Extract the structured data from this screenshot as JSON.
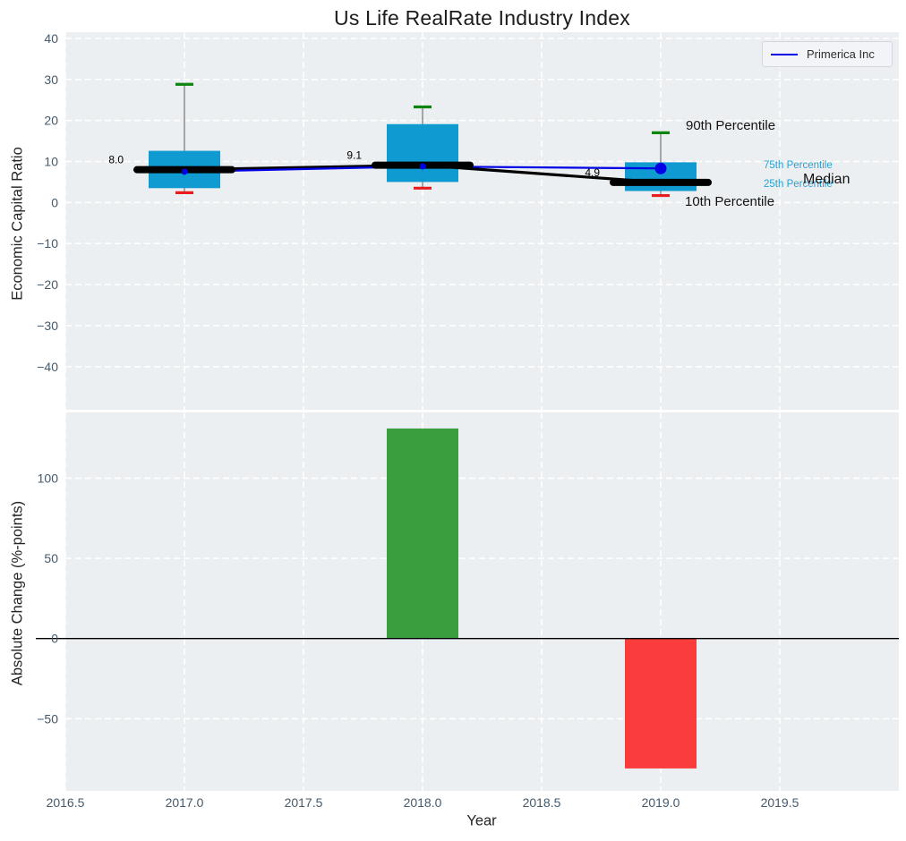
{
  "chart_data": [
    {
      "type": "box",
      "title": "Us Life RealRate Industry Index",
      "ylabel": "Economic Capital Ratio",
      "xlim": [
        2016.5,
        2020.0
      ],
      "ylim": [
        -50.5,
        41.5
      ],
      "xticks": [
        2016.5,
        2017,
        2017.5,
        2018,
        2018.5,
        2019,
        2019.5
      ],
      "yticks": [
        40,
        30,
        20,
        10,
        0,
        -10,
        -20,
        -30,
        -40
      ],
      "ytick_labels": [
        "40",
        "30",
        "20",
        "10",
        "0",
        "−10",
        "−20",
        "−30",
        "−40"
      ],
      "grid": true,
      "legend": {
        "label": "Primerica Inc",
        "position": "upper right",
        "line_color": "#0000E6"
      },
      "boxes": [
        {
          "x": 2017,
          "p10": 2.4,
          "p25": 3.5,
          "median": 8.0,
          "p75": 12.6,
          "p90": 28.8,
          "label": "8.0"
        },
        {
          "x": 2018,
          "p10": 3.5,
          "p25": 5.0,
          "median": 9.1,
          "p75": 19.1,
          "p90": 23.3,
          "label": "9.1"
        },
        {
          "x": 2019,
          "p10": 1.7,
          "p25": 2.8,
          "median": 4.9,
          "p75": 9.8,
          "p90": 17.0,
          "label": "4.9"
        }
      ],
      "median_series": {
        "name": "Median",
        "x": [
          2017,
          2018,
          2019
        ],
        "y": [
          8.0,
          9.1,
          4.9
        ],
        "color": "#000000"
      },
      "primerica_series": {
        "name": "Primerica Inc",
        "x": [
          2017,
          2018,
          2019
        ],
        "y": [
          7.5,
          8.8,
          8.3
        ],
        "color": "#0000E6"
      },
      "percentile_labels": {
        "p90": "90th Percentile",
        "p75": "75th Percentile",
        "p25": "25th Percentile",
        "median": "Median",
        "p10": "10th Percentile"
      },
      "colors": {
        "box": "#0F9BD1",
        "cap_top": "#0E8410",
        "cap_bottom": "#E81E1E",
        "whisker": "#7A7A7A",
        "median": "#000000",
        "cyan_label": "#2AA0D2",
        "plot_bg": "#ECEFF1",
        "grid": "#FFFFFF",
        "tick": "#455A6B"
      }
    },
    {
      "type": "bar",
      "ylabel": "Absolute Change (%-points)",
      "xlabel": "Year",
      "x": [
        2018,
        2019
      ],
      "values": [
        131,
        -81
      ],
      "bar_colors": [
        "#3A9E3E",
        "#FA3C3C"
      ],
      "xlim": [
        2016.5,
        2020.0
      ],
      "ylim": [
        -95,
        141
      ],
      "yticks": [
        100,
        50,
        0,
        -50
      ],
      "ytick_labels": [
        "100",
        "50",
        "0",
        "−50"
      ],
      "xticks": [
        2016.5,
        2017,
        2017.5,
        2018,
        2018.5,
        2019,
        2019.5
      ],
      "xtick_labels": [
        "2016.5",
        "2017.0",
        "2017.5",
        "2018.0",
        "2018.5",
        "2019.0",
        "2019.5"
      ],
      "zero_line": true,
      "colors": {
        "plot_bg": "#ECEFF1",
        "grid": "#FFFFFF",
        "tick": "#455A6B",
        "zero_line": "#000000"
      }
    }
  ]
}
